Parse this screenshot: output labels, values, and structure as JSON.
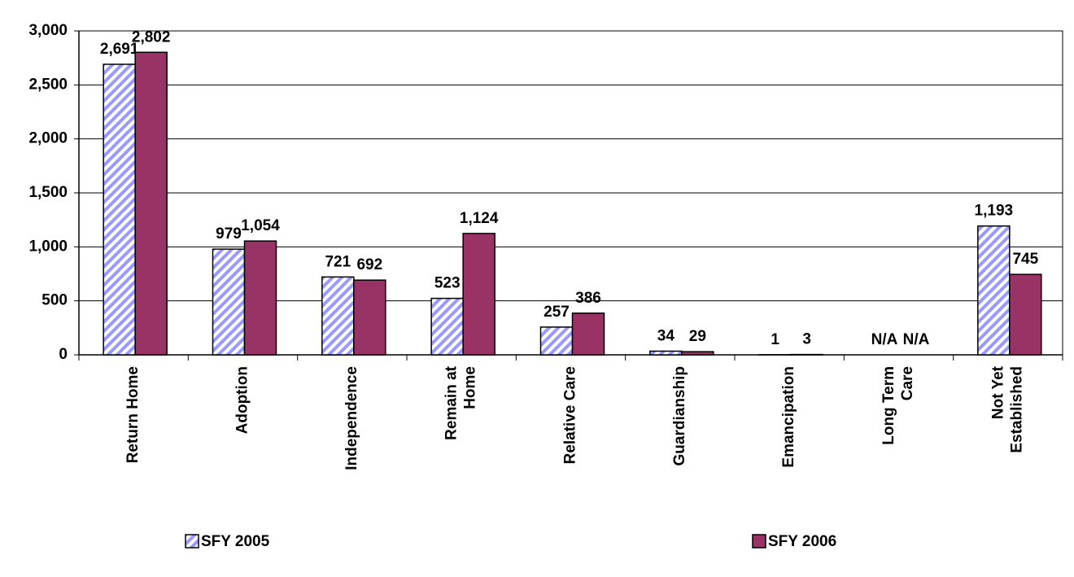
{
  "chart_data": {
    "type": "bar",
    "categories": [
      "Return Home",
      "Adoption",
      "Independence",
      "Remain at\nHome",
      "Relative Care",
      "Guardianship",
      "Emancipation",
      "Long Term\nCare",
      "Not Yet\nEstablished"
    ],
    "series": [
      {
        "name": "SFY 2005",
        "color": "#9999ff",
        "pattern": "hatch",
        "values": [
          2691,
          979,
          721,
          523,
          257,
          34,
          1,
          null,
          1193
        ],
        "value_labels": [
          "2,691",
          "979",
          "721",
          "523",
          "257",
          "34",
          "1",
          "N/A",
          "1,193"
        ]
      },
      {
        "name": "SFY 2006",
        "color": "#993366",
        "pattern": "solid",
        "values": [
          2802,
          1054,
          692,
          1124,
          386,
          29,
          3,
          null,
          745
        ],
        "value_labels": [
          "2,802",
          "1,054",
          "692",
          "1,124",
          "386",
          "29",
          "3",
          "N/A",
          "745"
        ]
      }
    ],
    "ylim": [
      0,
      3000
    ],
    "yticks": [
      0,
      500,
      {
        "value": 1000,
        "label": "1,000"
      },
      {
        "value": 1500,
        "label": "1,500"
      },
      {
        "value": 2000,
        "label": "2,000"
      },
      {
        "value": 2500,
        "label": "2,500"
      },
      {
        "value": 3000,
        "label": "3,000"
      }
    ],
    "grid": true,
    "legend": "bottom"
  }
}
